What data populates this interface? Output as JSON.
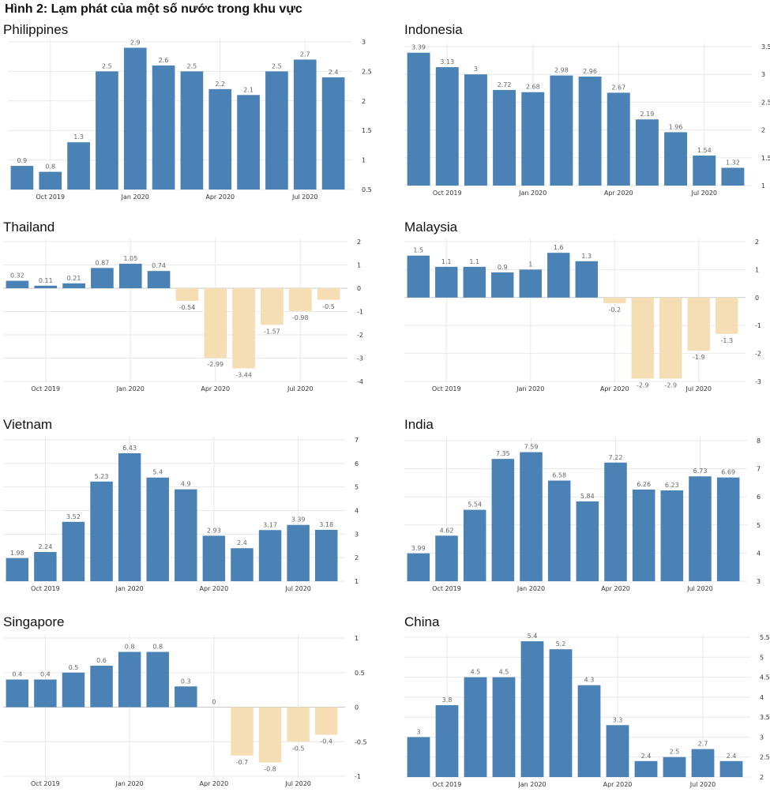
{
  "figure": {
    "title": "Hình 2: Lạm phát của một số nước trong khu vực"
  },
  "colors": {
    "positive": "#4a82b6",
    "negative": "#f5deb3",
    "grid": "#e8e8e8",
    "zero": "#c8c8c8"
  },
  "x_tick_labels": [
    "Oct 2019",
    "Jan 2020",
    "Apr 2020",
    "Jul 2020"
  ],
  "chart_data": [
    {
      "type": "bar",
      "title": "Philippines",
      "values": [
        0.9,
        0.8,
        1.3,
        2.5,
        2.9,
        2.6,
        2.5,
        2.2,
        2.1,
        2.5,
        2.7,
        2.4
      ],
      "labels": [
        "0.9",
        "0.8",
        "1.3",
        "2.5",
        "2.9",
        "2.6",
        "2.5",
        "2.2",
        "2.1",
        "2.5",
        "2.7",
        "2.4"
      ],
      "yticks": [
        "0.5",
        "1",
        "1.5",
        "2",
        "2.5",
        "3"
      ],
      "ylim": [
        0.5,
        3
      ]
    },
    {
      "type": "bar",
      "title": "Indonesia",
      "values": [
        3.39,
        3.13,
        3,
        2.72,
        2.68,
        2.98,
        2.96,
        2.67,
        2.19,
        1.96,
        1.54,
        1.32
      ],
      "labels": [
        "3.39",
        "3.13",
        "3",
        "2.72",
        "2.68",
        "2.98",
        "2.96",
        "2.67",
        "2.19",
        "1.96",
        "1.54",
        "1.32"
      ],
      "yticks": [
        "1",
        "1.5",
        "2",
        "2.5",
        "3",
        "3.5"
      ],
      "ylim": [
        1,
        3.5
      ]
    },
    {
      "type": "bar",
      "title": "Thailand",
      "values": [
        0.32,
        0.11,
        0.21,
        0.87,
        1.05,
        0.74,
        -0.54,
        -2.99,
        -3.44,
        -1.57,
        -0.98,
        -0.5
      ],
      "labels": [
        "0.32",
        "0.11",
        "0.21",
        "0.87",
        "1.05",
        "0.74",
        "-0.54",
        "-2.99",
        "-3.44",
        "-1.57",
        "-0.98",
        "-0.5"
      ],
      "yticks": [
        "-4",
        "-3",
        "-2",
        "-1",
        "0",
        "1",
        "2"
      ],
      "ylim": [
        -4,
        2
      ]
    },
    {
      "type": "bar",
      "title": "Malaysia",
      "values": [
        1.5,
        1.1,
        1.1,
        0.9,
        1,
        1.6,
        1.3,
        -0.2,
        -2.9,
        -2.9,
        -1.9,
        -1.3
      ],
      "labels": [
        "1.5",
        "1.1",
        "1.1",
        "0.9",
        "1",
        "1.6",
        "1.3",
        "-0.2",
        "-2.9",
        "-2.9",
        "-1.9",
        "-1.3"
      ],
      "yticks": [
        "-3",
        "-2",
        "-1",
        "0",
        "1",
        "2"
      ],
      "ylim": [
        -3,
        2
      ]
    },
    {
      "type": "bar",
      "title": "Vietnam",
      "values": [
        1.98,
        2.24,
        3.52,
        5.23,
        6.43,
        5.4,
        4.9,
        2.93,
        2.4,
        3.17,
        3.39,
        3.18
      ],
      "labels": [
        "1.98",
        "2.24",
        "3.52",
        "5.23",
        "6.43",
        "5.4",
        "4.9",
        "2.93",
        "2.4",
        "3.17",
        "3.39",
        "3.18"
      ],
      "yticks": [
        "1",
        "2",
        "3",
        "4",
        "5",
        "6",
        "7"
      ],
      "ylim": [
        1,
        7
      ]
    },
    {
      "type": "bar",
      "title": "India",
      "values": [
        3.99,
        4.62,
        5.54,
        7.35,
        7.59,
        6.58,
        5.84,
        7.22,
        6.26,
        6.23,
        6.73,
        6.69
      ],
      "labels": [
        "3.99",
        "4.62",
        "5.54",
        "7.35",
        "7.59",
        "6.58",
        "5.84",
        "7.22",
        "6.26",
        "6.23",
        "6.73",
        "6.69"
      ],
      "yticks": [
        "3",
        "4",
        "5",
        "6",
        "7",
        "8"
      ],
      "ylim": [
        3,
        8
      ]
    },
    {
      "type": "bar",
      "title": "Singapore",
      "values": [
        0.4,
        0.4,
        0.5,
        0.6,
        0.8,
        0.8,
        0.3,
        0,
        -0.7,
        -0.8,
        -0.5,
        -0.4
      ],
      "labels": [
        "0.4",
        "0.4",
        "0.5",
        "0.6",
        "0.8",
        "0.8",
        "0.3",
        "0",
        "-0.7",
        "-0.8",
        "-0.5",
        "-0.4"
      ],
      "yticks": [
        "-1",
        "-0.5",
        "0",
        "0.5",
        "1"
      ],
      "ylim": [
        -1,
        1
      ]
    },
    {
      "type": "bar",
      "title": "China",
      "values": [
        3,
        3.8,
        4.5,
        4.5,
        5.4,
        5.2,
        4.3,
        3.3,
        2.4,
        2.5,
        2.7,
        2.4
      ],
      "labels": [
        "3",
        "3.8",
        "4.5",
        "4.5",
        "5.4",
        "5.2",
        "4.3",
        "3.3",
        "2.4",
        "2.5",
        "2.7",
        "2.4"
      ],
      "yticks": [
        "2",
        "2.5",
        "3",
        "3.5",
        "4",
        "4.5",
        "5",
        "5.5"
      ],
      "ylim": [
        2,
        5.5
      ]
    }
  ]
}
